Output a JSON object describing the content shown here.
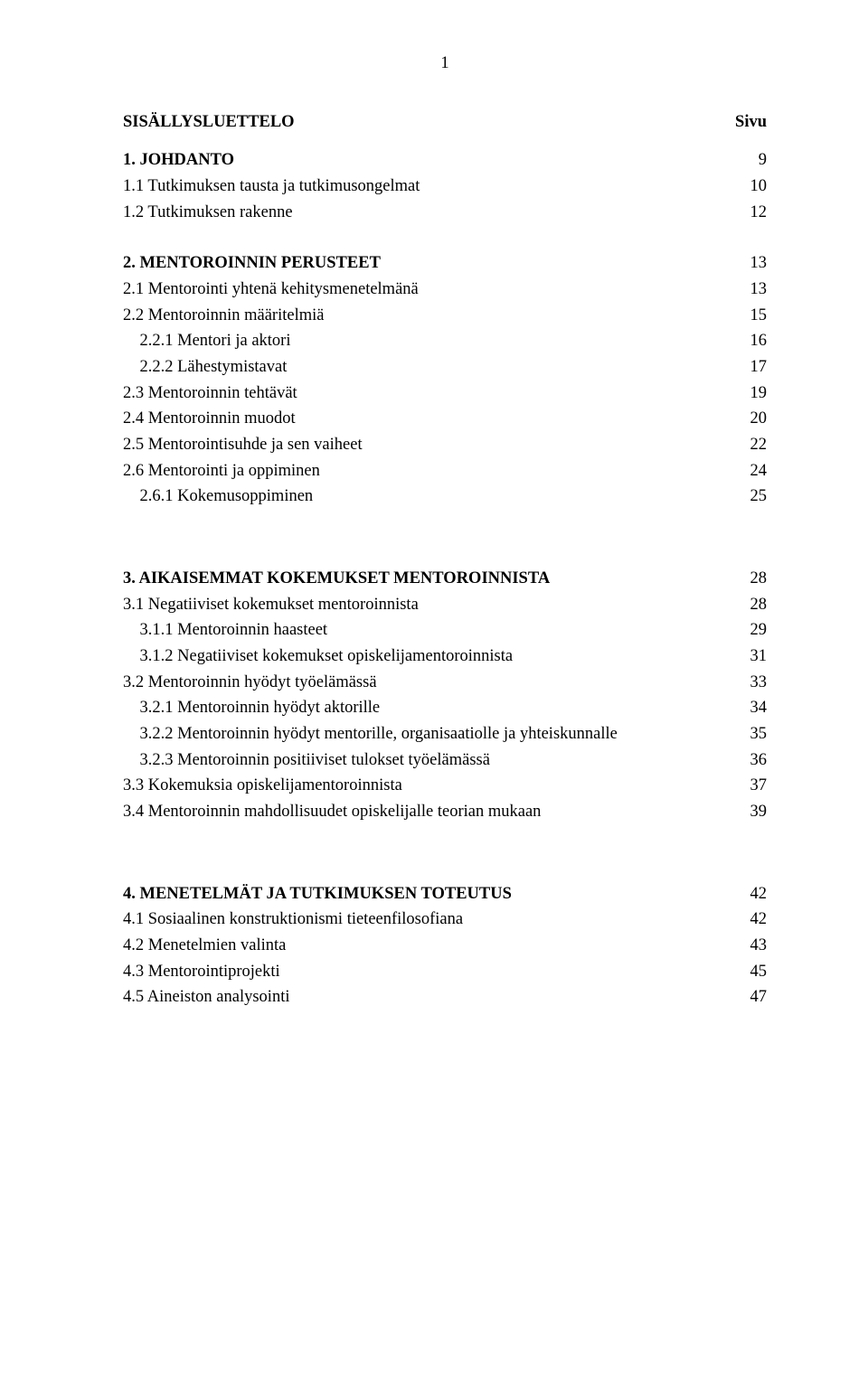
{
  "page_number": "1",
  "toc_title": "SISÄLLYSLUETTELO",
  "page_label": "Sivu",
  "font": {
    "family": "Times New Roman",
    "size_pt": 14,
    "color": "#000000"
  },
  "background_color": "#ffffff",
  "sections": [
    {
      "heading": {
        "label": "1. JOHDANTO",
        "page": "9",
        "bold": true
      },
      "items": [
        {
          "label": "1.1 Tutkimuksen tausta ja tutkimusongelmat",
          "page": "10"
        },
        {
          "label": "1.2 Tutkimuksen rakenne",
          "page": "12"
        }
      ]
    },
    {
      "heading": {
        "label": "2. MENTOROINNIN PERUSTEET",
        "page": "13",
        "bold": true
      },
      "items": [
        {
          "label": "2.1 Mentorointi yhtenä kehitysmenetelmänä",
          "page": "13"
        },
        {
          "label": "2.2 Mentoroinnin määritelmiä",
          "page": "15"
        },
        {
          "label": "2.2.1 Mentori ja aktori",
          "page": "16",
          "indent": 1
        },
        {
          "label": "2.2.2 Lähestymistavat",
          "page": "17",
          "indent": 1
        },
        {
          "label": "2.3 Mentoroinnin tehtävät",
          "page": "19"
        },
        {
          "label": "2.4 Mentoroinnin muodot",
          "page": "20"
        },
        {
          "label": "2.5 Mentorointisuhde ja sen vaiheet",
          "page": "22"
        },
        {
          "label": "2.6 Mentorointi ja oppiminen",
          "page": "24"
        },
        {
          "label": "2.6.1 Kokemusoppiminen",
          "page": "25",
          "indent": 1
        }
      ]
    },
    {
      "heading": {
        "label": "3. AIKAISEMMAT KOKEMUKSET MENTOROINNISTA",
        "page": "28",
        "bold": true
      },
      "items": [
        {
          "label": "3.1 Negatiiviset kokemukset mentoroinnista",
          "page": "28"
        },
        {
          "label": "3.1.1 Mentoroinnin haasteet",
          "page": "29",
          "indent": 1
        },
        {
          "label": "3.1.2 Negatiiviset kokemukset opiskelijamentoroinnista",
          "page": "31",
          "indent": 1
        },
        {
          "label": "3.2 Mentoroinnin hyödyt työelämässä",
          "page": "33"
        },
        {
          "label": "3.2.1 Mentoroinnin hyödyt aktorille",
          "page": "34",
          "indent": 1
        },
        {
          "label": "3.2.2 Mentoroinnin hyödyt mentorille, organisaatiolle ja yhteiskunnalle",
          "page": "35",
          "indent": 1
        },
        {
          "label": "3.2.3 Mentoroinnin positiiviset tulokset työelämässä",
          "page": "36",
          "indent": 1
        },
        {
          "label": "3.3 Kokemuksia opiskelijamentoroinnista",
          "page": "37"
        },
        {
          "label": "3.4 Mentoroinnin mahdollisuudet opiskelijalle teorian mukaan",
          "page": "39"
        }
      ]
    },
    {
      "heading": {
        "label": "4. MENETELMÄT JA TUTKIMUKSEN TOTEUTUS",
        "page": "42",
        "bold": true
      },
      "items": [
        {
          "label": "4.1 Sosiaalinen konstruktionismi tieteenfilosofiana",
          "page": "42"
        },
        {
          "label": "4.2 Menetelmien valinta",
          "page": "43"
        },
        {
          "label": "4.3 Mentorointiprojekti",
          "page": "45"
        },
        {
          "label": "4.5 Aineiston analysointi",
          "page": "47"
        }
      ]
    }
  ]
}
